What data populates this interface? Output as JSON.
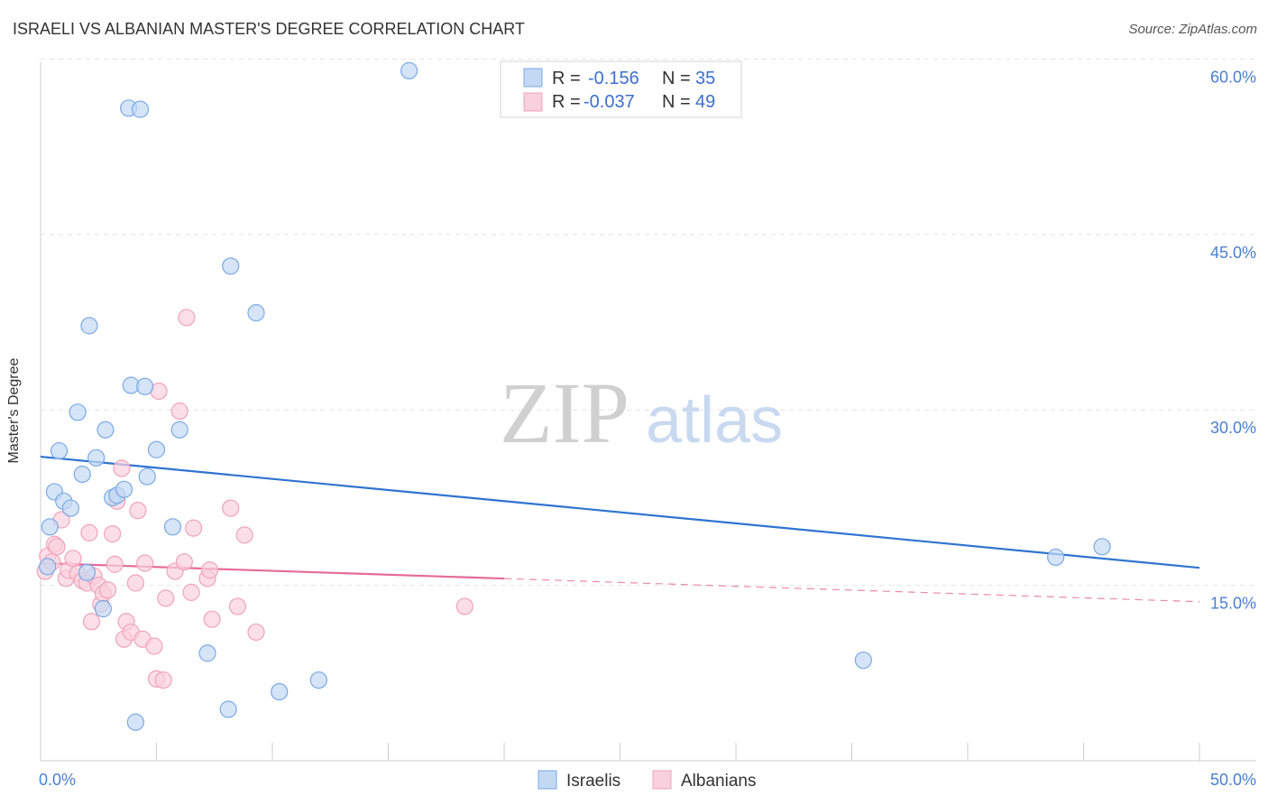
{
  "title": "ISRAELI VS ALBANIAN MASTER'S DEGREE CORRELATION CHART",
  "source": "Source: ZipAtlas.com",
  "watermark": {
    "zip": "ZIP",
    "atlas": "atlas"
  },
  "chart_data": {
    "type": "scatter",
    "xlabel": "",
    "ylabel": "Master's Degree",
    "xlim": [
      0,
      50
    ],
    "ylim": [
      0,
      62.5
    ],
    "x_tick_labels": [
      "0.0%",
      "50.0%"
    ],
    "y_ticks": [
      15,
      30,
      45,
      60
    ],
    "y_tick_labels": [
      "15.0%",
      "30.0%",
      "45.0%",
      "60.0%"
    ],
    "grid": true,
    "stats_box": [
      {
        "r_label": "R =",
        "r_value": "-0.156",
        "n_label": "N =",
        "n_value": "35"
      },
      {
        "r_label": "R =",
        "r_value": "-0.037",
        "n_label": "N =",
        "n_value": "49"
      }
    ],
    "series": [
      {
        "name": "Israelis",
        "color": "#7aaae6",
        "fill": "#c3d8f3",
        "line_color": "#2f74d0",
        "trend": {
          "x0": 0,
          "y0": 26.0,
          "x1": 50,
          "y1": 16.5,
          "dashed_from": null
        },
        "points": [
          [
            0.3,
            16.6
          ],
          [
            0.4,
            20.0
          ],
          [
            0.6,
            23.0
          ],
          [
            0.8,
            26.5
          ],
          [
            1.0,
            22.2
          ],
          [
            1.3,
            21.6
          ],
          [
            1.6,
            29.8
          ],
          [
            1.8,
            24.5
          ],
          [
            2.0,
            16.1
          ],
          [
            2.1,
            37.2
          ],
          [
            2.4,
            25.9
          ],
          [
            2.8,
            28.3
          ],
          [
            3.1,
            22.5
          ],
          [
            3.3,
            22.7
          ],
          [
            3.6,
            23.2
          ],
          [
            3.8,
            55.8
          ],
          [
            3.9,
            32.1
          ],
          [
            4.1,
            3.3
          ],
          [
            4.3,
            55.7
          ],
          [
            4.5,
            32.0
          ],
          [
            4.6,
            24.3
          ],
          [
            5.0,
            26.6
          ],
          [
            5.7,
            20.0
          ],
          [
            6.0,
            28.3
          ],
          [
            7.2,
            9.2
          ],
          [
            8.1,
            4.4
          ],
          [
            8.2,
            42.3
          ],
          [
            9.3,
            38.3
          ],
          [
            10.3,
            5.9
          ],
          [
            12.0,
            6.9
          ],
          [
            15.9,
            59.0
          ],
          [
            2.7,
            13.0
          ],
          [
            35.5,
            8.6
          ],
          [
            43.8,
            17.4
          ],
          [
            45.8,
            18.3
          ]
        ]
      },
      {
        "name": "Albanians",
        "color": "#f0a3bc",
        "fill": "#f9d0dd",
        "line_color": "#e56b97",
        "trend": {
          "x0": 0,
          "y0": 16.9,
          "x1": 50,
          "y1": 13.6,
          "dashed_from": 20
        },
        "points": [
          [
            0.2,
            16.2
          ],
          [
            0.3,
            17.5
          ],
          [
            0.5,
            17.0
          ],
          [
            0.6,
            18.5
          ],
          [
            0.7,
            18.3
          ],
          [
            0.9,
            20.6
          ],
          [
            1.1,
            15.6
          ],
          [
            1.2,
            16.3
          ],
          [
            1.4,
            17.3
          ],
          [
            1.6,
            16.0
          ],
          [
            1.8,
            15.4
          ],
          [
            2.0,
            15.2
          ],
          [
            2.1,
            19.5
          ],
          [
            2.2,
            11.9
          ],
          [
            2.3,
            15.8
          ],
          [
            2.5,
            15.0
          ],
          [
            2.6,
            13.4
          ],
          [
            2.7,
            14.3
          ],
          [
            2.9,
            14.6
          ],
          [
            3.1,
            19.4
          ],
          [
            3.2,
            16.8
          ],
          [
            3.3,
            22.2
          ],
          [
            3.5,
            25.0
          ],
          [
            3.6,
            10.4
          ],
          [
            3.7,
            11.9
          ],
          [
            3.9,
            11.0
          ],
          [
            4.1,
            15.2
          ],
          [
            4.2,
            21.4
          ],
          [
            4.4,
            10.4
          ],
          [
            4.5,
            16.9
          ],
          [
            4.9,
            9.8
          ],
          [
            5.0,
            7.0
          ],
          [
            5.1,
            31.6
          ],
          [
            5.3,
            6.9
          ],
          [
            5.4,
            13.9
          ],
          [
            5.8,
            16.2
          ],
          [
            6.0,
            29.9
          ],
          [
            6.2,
            17.0
          ],
          [
            6.3,
            37.9
          ],
          [
            6.5,
            14.4
          ],
          [
            6.6,
            19.9
          ],
          [
            7.2,
            15.6
          ],
          [
            7.3,
            16.3
          ],
          [
            7.4,
            12.1
          ],
          [
            8.2,
            21.6
          ],
          [
            8.5,
            13.2
          ],
          [
            8.8,
            19.3
          ],
          [
            9.3,
            11.0
          ],
          [
            18.3,
            13.2
          ]
        ]
      }
    ]
  }
}
